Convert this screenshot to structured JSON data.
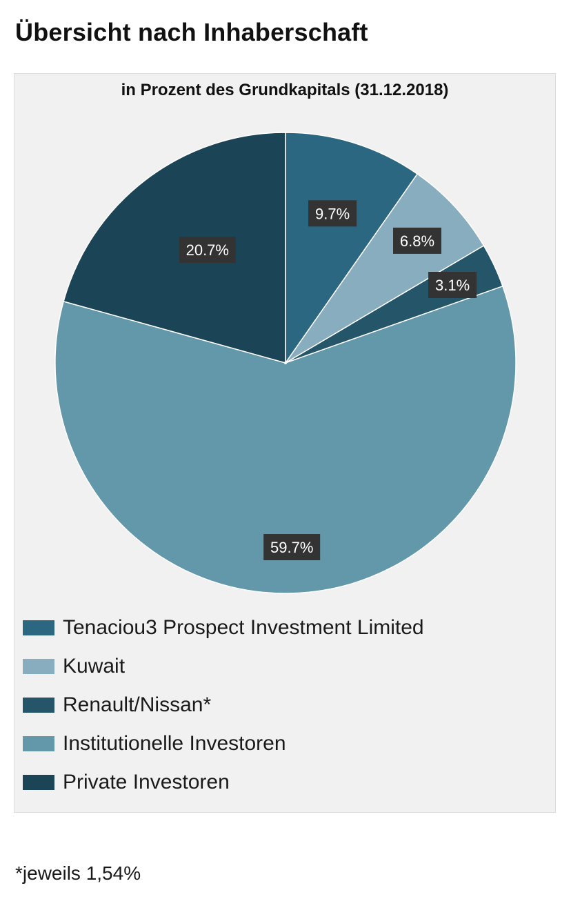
{
  "page": {
    "title": "Übersicht nach Inhaberschaft",
    "footnote": "*jeweils 1,54%"
  },
  "chart_data": {
    "type": "pie",
    "title": "in Prozent des Grundkapitals (31.12.2018)",
    "unit": "%",
    "slices": [
      {
        "label": "Tenaciou3 Prospect Investment Limited",
        "value": 9.7,
        "value_label": "9.7%",
        "color": "#2b6780"
      },
      {
        "label": "Kuwait",
        "value": 6.8,
        "value_label": "6.8%",
        "color": "#88adbf"
      },
      {
        "label": "Renault/Nissan*",
        "value": 3.1,
        "value_label": "3.1%",
        "color": "#245569"
      },
      {
        "label": "Institutionelle Investoren",
        "value": 59.7,
        "value_label": "59.7%",
        "color": "#6398ab"
      },
      {
        "label": "Private Investoren",
        "value": 20.7,
        "value_label": "20.7%",
        "color": "#1b4557"
      }
    ],
    "start": "12 o'clock",
    "direction": "clockwise",
    "legend_position": "bottom"
  }
}
